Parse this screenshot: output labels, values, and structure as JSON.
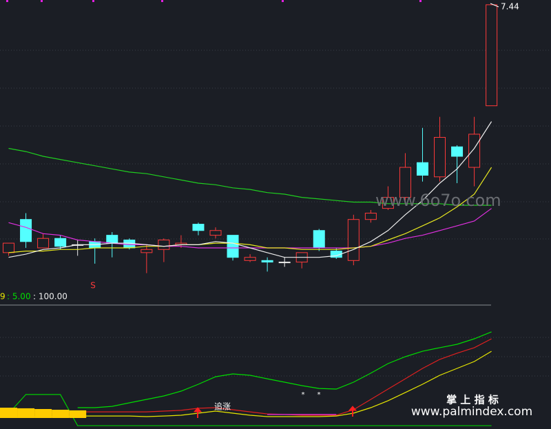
{
  "chart_data": [
    {
      "type": "candlestick",
      "categories": [
        null,
        null,
        null,
        null,
        null,
        null,
        null,
        null,
        null,
        null,
        null,
        null,
        null,
        null,
        null,
        null,
        null,
        null,
        null,
        null,
        null,
        null,
        null,
        null,
        null,
        null,
        null,
        null,
        null
      ],
      "open": [
        5.87,
        6.08,
        5.9,
        5.96,
        5.92,
        5.94,
        5.98,
        5.95,
        5.87,
        5.89,
        5.92,
        6.05,
        5.98,
        5.98,
        5.82,
        5.82,
        5.81,
        5.81,
        6.01,
        5.88,
        5.82,
        6.08,
        6.15,
        6.22,
        6.44,
        6.35,
        6.54,
        6.41,
        6.8
      ],
      "high": [
        5.93,
        6.12,
        5.99,
        5.98,
        5.95,
        5.96,
        6.0,
        5.96,
        5.92,
        5.96,
        5.98,
        6.06,
        6.03,
        5.98,
        5.86,
        5.84,
        5.84,
        5.86,
        6.02,
        5.9,
        6.11,
        6.14,
        6.29,
        6.5,
        6.66,
        6.73,
        6.55,
        6.73,
        7.44
      ],
      "low": [
        5.85,
        5.9,
        5.9,
        5.89,
        5.85,
        5.8,
        5.84,
        5.89,
        5.74,
        5.81,
        5.9,
        5.98,
        5.96,
        5.82,
        5.81,
        5.75,
        5.78,
        5.77,
        5.88,
        5.83,
        5.79,
        6.06,
        6.14,
        6.2,
        6.32,
        6.32,
        6.31,
        6.29,
        6.8
      ],
      "close": [
        5.93,
        5.94,
        5.96,
        5.91,
        5.92,
        5.9,
        5.93,
        5.9,
        5.89,
        5.95,
        5.93,
        6.01,
        6.01,
        5.84,
        5.84,
        5.81,
        5.81,
        5.87,
        5.9,
        5.84,
        6.08,
        6.12,
        6.22,
        6.41,
        6.36,
        6.6,
        6.48,
        6.62,
        7.44
      ],
      "series": [
        {
          "color": "#1fce1f",
          "values": [
            6.53,
            6.51,
            6.48,
            6.46,
            6.44,
            6.42,
            6.4,
            6.38,
            6.37,
            6.35,
            6.33,
            6.31,
            6.3,
            6.28,
            6.27,
            6.25,
            6.24,
            6.22,
            6.21,
            6.2,
            6.19,
            6.19,
            6.18,
            6.18,
            6.18,
            6.18,
            6.17,
            6.17,
            6.17
          ]
        },
        {
          "color": "#e030e0",
          "values": [
            6.06,
            6.03,
            5.99,
            5.98,
            5.95,
            5.94,
            5.93,
            5.92,
            5.92,
            5.91,
            5.91,
            5.9,
            5.9,
            5.9,
            5.9,
            5.9,
            5.9,
            5.9,
            5.9,
            5.9,
            5.9,
            5.91,
            5.93,
            5.96,
            5.98,
            6.01,
            6.04,
            6.07,
            6.15
          ]
        },
        {
          "color": "#e8e820",
          "values": [
            5.87,
            5.88,
            5.88,
            5.89,
            5.89,
            5.9,
            5.9,
            5.9,
            5.91,
            5.91,
            5.92,
            5.92,
            5.93,
            5.93,
            5.92,
            5.9,
            5.9,
            5.89,
            5.89,
            5.89,
            5.9,
            5.91,
            5.95,
            5.99,
            6.04,
            6.09,
            6.16,
            6.24,
            6.41
          ]
        },
        {
          "color": "#eeeeee",
          "values": [
            5.84,
            5.86,
            5.89,
            5.9,
            5.92,
            5.92,
            5.93,
            5.93,
            5.92,
            5.91,
            5.92,
            5.92,
            5.94,
            5.93,
            5.9,
            5.87,
            5.84,
            5.84,
            5.84,
            5.85,
            5.89,
            5.94,
            6.01,
            6.11,
            6.2,
            6.31,
            6.4,
            6.53,
            6.7
          ]
        }
      ],
      "ylim": [
        5.66,
        7.47
      ],
      "annotations": {
        "sell": "S"
      },
      "up_color": "#ff3a3a",
      "down_color": "#54ffff",
      "flat_color": "#eeeeee"
    },
    {
      "type": "line",
      "legend_texts": [
        "9",
        ": 5.00",
        ": 100.00"
      ],
      "ylim": [
        0,
        100
      ],
      "series": [
        {
          "type": "line",
          "color": "#00dd00",
          "values": [
            null,
            null,
            null,
            null,
            15.8,
            15.8,
            16.9,
            19.8,
            22.6,
            25.4,
            29.4,
            35.0,
            41.2,
            43.5,
            42.4,
            39.5,
            36.7,
            33.9,
            31.6,
            31.1,
            36.7,
            44.1,
            52.0,
            57.6,
            62.1,
            65.0,
            67.8,
            72.3,
            78.0
          ]
        },
        {
          "type": "line",
          "color": "#e02020",
          "values": [
            11.3,
            11.3,
            11.9,
            11.9,
            12.4,
            12.4,
            12.4,
            12.4,
            12.4,
            13.0,
            13.6,
            15.3,
            15.8,
            14.1,
            12.4,
            10.7,
            10.2,
            9.6,
            9.6,
            9.6,
            14.1,
            22.6,
            31.1,
            39.5,
            48.0,
            55.4,
            60.5,
            65.0,
            72.3
          ]
        },
        {
          "type": "line",
          "color": "#e8e800",
          "values": [
            7.9,
            7.9,
            8.5,
            8.5,
            9.0,
            9.0,
            9.0,
            9.0,
            8.5,
            9.0,
            9.6,
            11.3,
            13.0,
            11.3,
            9.6,
            8.5,
            8.5,
            8.5,
            8.5,
            9.0,
            11.3,
            15.8,
            21.5,
            28.2,
            35.0,
            42.4,
            48.0,
            53.7,
            62.1
          ]
        },
        {
          "type": "line",
          "color": "#e030e0",
          "values": [
            null,
            null,
            null,
            null,
            null,
            null,
            null,
            null,
            null,
            null,
            null,
            null,
            null,
            null,
            null,
            10.2,
            10.2,
            10.2,
            10.2,
            10.2,
            null,
            null,
            null,
            null,
            null,
            null,
            null,
            null,
            null
          ]
        },
        {
          "type": "line",
          "color": "#00cc00",
          "values": [
            11,
            26.6,
            26.6,
            26.6,
            1,
            1,
            1,
            1,
            1,
            1,
            1,
            1,
            1,
            1,
            1,
            1,
            1,
            1,
            1,
            1,
            1,
            1,
            1,
            1,
            1,
            1,
            1,
            1,
            1
          ]
        },
        {
          "type": "bar",
          "color": "#ffcc00",
          "values": [
            15.8,
            15.3,
            14.7,
            14.1,
            13.6,
            null,
            null,
            null,
            null,
            null,
            null,
            null,
            null,
            null,
            null,
            null,
            null,
            null,
            null,
            null,
            null,
            null,
            null,
            null,
            null,
            null,
            null,
            null,
            null
          ]
        }
      ],
      "annotations": {
        "chase": "追涨",
        "star": "*"
      }
    }
  ],
  "watermarks": [
    "www.6o7o.com",
    "掌 上 指 标",
    "www.palmindex.com"
  ]
}
